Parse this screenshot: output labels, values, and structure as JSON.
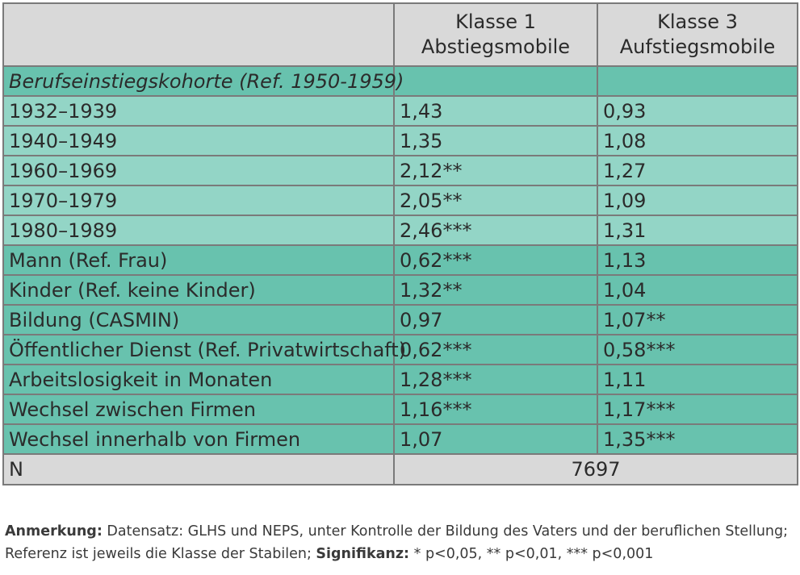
{
  "colors": {
    "header_gray": "#d9d9d9",
    "light_teal": "#93d5c6",
    "dark_teal": "#68c2ae",
    "border": "#7a7a7a"
  },
  "table": {
    "headers": [
      {
        "line1": "Klasse 1",
        "line2": "Abstiegsmobile"
      },
      {
        "line1": "Klasse 3",
        "line2": "Aufstiegsmobile"
      }
    ],
    "section_label": "Berufseinstiegskohorte (Ref. 1950-1959)",
    "rows": [
      {
        "label": "1932–1939",
        "k1": "1,43",
        "k3": "0,93",
        "shade": "light"
      },
      {
        "label": "1940–1949",
        "k1": "1,35",
        "k3": "1,08",
        "shade": "light"
      },
      {
        "label": "1960–1969",
        "k1": "2,12**",
        "k3": "1,27",
        "shade": "light"
      },
      {
        "label": "1970–1979",
        "k1": "2,05**",
        "k3": "1,09",
        "shade": "light"
      },
      {
        "label": "1980–1989",
        "k1": "2,46***",
        "k3": "1,31",
        "shade": "light"
      },
      {
        "label": "Mann (Ref. Frau)",
        "k1": "0,62***",
        "k3": "1,13",
        "shade": "dark"
      },
      {
        "label": "Kinder (Ref. keine Kinder)",
        "k1": "1,32**",
        "k3": "1,04",
        "shade": "dark"
      },
      {
        "label": "Bildung (CASMIN)",
        "k1": "0,97",
        "k3": "1,07**",
        "shade": "dark"
      },
      {
        "label": "Öffentlicher Dienst (Ref. Privatwirtschaft)",
        "k1": "0,62***",
        "k3": "0,58***",
        "shade": "dark"
      },
      {
        "label": "Arbeitslosigkeit in Monaten",
        "k1": "1,28***",
        "k3": "1,11",
        "shade": "dark"
      },
      {
        "label": "Wechsel zwischen Firmen",
        "k1": "1,16***",
        "k3": "1,17***",
        "shade": "dark"
      },
      {
        "label": "Wechsel innerhalb von Firmen",
        "k1": "1,07",
        "k3": "1,35***",
        "shade": "dark"
      }
    ],
    "n_label": "N",
    "n_value": "7697"
  },
  "note": {
    "anm_label": "Anmerkung:",
    "anm_text": " Datensatz: GLHS und NEPS, unter Kontrolle der Bildung des Vaters und der beruflichen Stellung;",
    "ref_text": "Referenz ist jeweils die Klasse der Stabilen; ",
    "sig_label": "Signifikanz:",
    "sig_text": " * p<0,05, ** p<0,01, *** p<0,001"
  }
}
